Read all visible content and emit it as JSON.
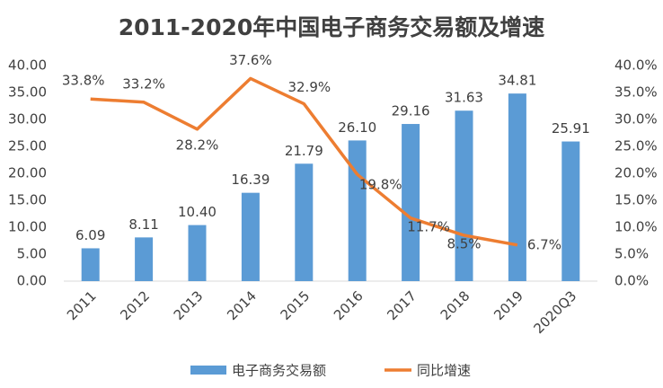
{
  "chart_data": {
    "type": "bar-line",
    "title": "2011-2020年中国电子商务交易额及增速",
    "categories": [
      "2011",
      "2012",
      "2013",
      "2014",
      "2015",
      "2016",
      "2017",
      "2018",
      "2019",
      "2020Q3"
    ],
    "series": [
      {
        "name": "电子商务交易额",
        "type": "bar",
        "color": "#5b9bd5",
        "values": [
          6.09,
          8.11,
          10.4,
          16.39,
          21.79,
          26.1,
          29.16,
          31.63,
          34.81,
          25.91
        ],
        "value_labels": [
          "6.09",
          "8.11",
          "10.40",
          "16.39",
          "21.79",
          "26.10",
          "29.16",
          "31.63",
          "34.81",
          "25.91"
        ]
      },
      {
        "name": "同比增速",
        "type": "line",
        "axis": "y2",
        "color": "#ed7d31",
        "values": [
          33.8,
          33.2,
          28.2,
          37.6,
          32.9,
          19.8,
          11.7,
          8.5,
          6.7,
          null
        ],
        "value_labels": [
          "33.8%",
          "33.2%",
          "28.2%",
          "37.6%",
          "32.9%",
          "19.8%",
          "11.7%",
          "8.5%",
          "6.7%",
          null
        ]
      }
    ],
    "ylim": [
      0,
      40
    ],
    "yticks": [
      {
        "value": 0,
        "label": "0.00"
      },
      {
        "value": 5,
        "label": "5.00"
      },
      {
        "value": 10,
        "label": "10.00"
      },
      {
        "value": 15,
        "label": "15.00"
      },
      {
        "value": 20,
        "label": "20.00"
      },
      {
        "value": 25,
        "label": "25.00"
      },
      {
        "value": 30,
        "label": "30.00"
      },
      {
        "value": 35,
        "label": "35.00"
      },
      {
        "value": 40,
        "label": "40.00"
      }
    ],
    "y2lim": [
      0,
      40
    ],
    "y2ticks": [
      {
        "value": 0,
        "label": "0.0%"
      },
      {
        "value": 5,
        "label": "5.0%"
      },
      {
        "value": 10,
        "label": "10.0%"
      },
      {
        "value": 15,
        "label": "15.0%"
      },
      {
        "value": 20,
        "label": "20.0%"
      },
      {
        "value": 25,
        "label": "25.0%"
      },
      {
        "value": 30,
        "label": "30.0%"
      },
      {
        "value": 35,
        "label": "35.0%"
      },
      {
        "value": 40,
        "label": "40.0%"
      }
    ],
    "legend": "bottom"
  }
}
